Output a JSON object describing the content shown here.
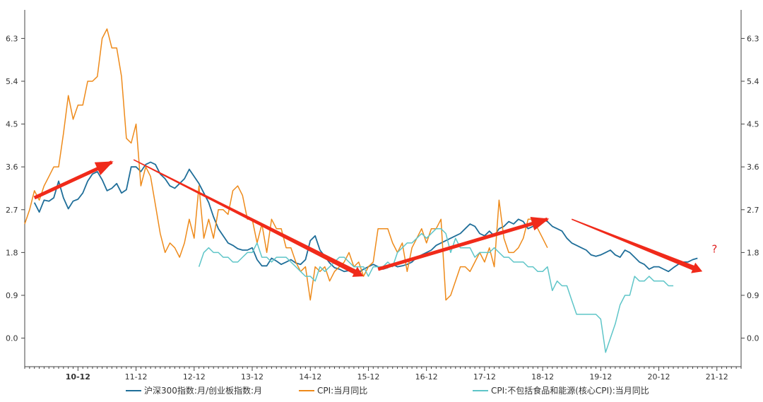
{
  "chart_data": {
    "type": "line",
    "title": "",
    "xlabel": "",
    "ylabel": "",
    "ylim": [
      -0.6,
      6.9
    ],
    "y_ticks": [
      "6.3",
      "5.4",
      "4.5",
      "3.6",
      "2.7",
      "1.8",
      "0.9",
      "0.0"
    ],
    "y_tick_values": [
      6.3,
      5.4,
      4.5,
      3.6,
      2.7,
      1.8,
      0.9,
      0.0
    ],
    "x_ticks": [
      "10-12",
      "11-12",
      "12-12",
      "13-12",
      "14-12",
      "15-12",
      "16-12",
      "17-12",
      "18-12",
      "19-12",
      "20-12",
      "21-12"
    ],
    "x_bold_tick": "10-12",
    "start_month": "2010-01",
    "months_count": 149,
    "series": [
      {
        "name": "沪深300指数:月/创业板指数:月",
        "color": "#1f6e99",
        "start_index": 2,
        "values": [
          2.85,
          2.65,
          2.9,
          2.88,
          2.95,
          3.3,
          2.95,
          2.72,
          2.88,
          2.92,
          3.05,
          3.3,
          3.45,
          3.5,
          3.33,
          3.1,
          3.15,
          3.25,
          3.05,
          3.12,
          3.6,
          3.6,
          3.5,
          3.65,
          3.7,
          3.65,
          3.45,
          3.35,
          3.2,
          3.15,
          3.25,
          3.35,
          3.55,
          3.4,
          3.25,
          3.05,
          2.85,
          2.55,
          2.3,
          2.15,
          2.0,
          1.95,
          1.88,
          1.85,
          1.85,
          1.9,
          1.65,
          1.52,
          1.52,
          1.68,
          1.62,
          1.55,
          1.6,
          1.65,
          1.58,
          1.55,
          1.65,
          2.05,
          2.15,
          1.85,
          1.72,
          1.58,
          1.48,
          1.45,
          1.4,
          1.42,
          1.45,
          1.38,
          1.45,
          1.5,
          1.55,
          1.5,
          1.45,
          1.48,
          1.55,
          1.5,
          1.52,
          1.55,
          1.6,
          1.7,
          1.75,
          1.8,
          1.85,
          1.95,
          2.0,
          2.05,
          2.1,
          2.15,
          2.2,
          2.3,
          2.4,
          2.35,
          2.2,
          2.15,
          2.25,
          2.15,
          2.3,
          2.35,
          2.45,
          2.4,
          2.5,
          2.45,
          2.3,
          2.35,
          2.5,
          2.5,
          2.45,
          2.35,
          2.3,
          2.25,
          2.1,
          2.0,
          1.95,
          1.9,
          1.85,
          1.75,
          1.72,
          1.75,
          1.8,
          1.85,
          1.75,
          1.7,
          1.85,
          1.8,
          1.7,
          1.6,
          1.55,
          1.45,
          1.5,
          1.5,
          1.45,
          1.4,
          1.48,
          1.55,
          1.6,
          1.6,
          1.65,
          1.68
        ]
      },
      {
        "name": "CPI:当月同比",
        "color": "#ee8a1a",
        "start_index": 0,
        "values": [
          2.4,
          2.7,
          3.1,
          2.9,
          3.2,
          3.4,
          3.6,
          3.6,
          4.3,
          5.1,
          4.6,
          4.9,
          4.9,
          5.4,
          5.4,
          5.5,
          6.3,
          6.5,
          6.1,
          6.1,
          5.5,
          4.2,
          4.1,
          4.5,
          3.2,
          3.6,
          3.4,
          2.8,
          2.2,
          1.8,
          2.0,
          1.9,
          1.7,
          2.0,
          2.5,
          2.1,
          3.2,
          2.1,
          2.5,
          2.1,
          2.7,
          2.7,
          2.6,
          3.1,
          3.2,
          3.0,
          2.5,
          2.5,
          2.0,
          2.4,
          1.8,
          2.5,
          2.3,
          2.3,
          1.9,
          1.9,
          1.6,
          1.4,
          1.5,
          0.8,
          1.5,
          1.4,
          1.5,
          1.2,
          1.4,
          1.5,
          1.6,
          1.8,
          1.5,
          1.6,
          1.3,
          1.5,
          1.6,
          2.3,
          2.3,
          2.3,
          2.0,
          1.8,
          2.0,
          1.4,
          1.9,
          2.1,
          2.3,
          2.0,
          2.3,
          2.3,
          2.5,
          0.8,
          0.9,
          1.2,
          1.5,
          1.5,
          1.4,
          1.6,
          1.8,
          1.6,
          1.9,
          1.5,
          2.9,
          2.1,
          1.8,
          1.8,
          1.9,
          2.1,
          2.5,
          2.5,
          2.3,
          2.1,
          1.9
        ]
      },
      {
        "name": "CPI:不包括食品和能源(核心CPI):当月同比",
        "color": "#5ec5c8",
        "start_index": 36,
        "values": [
          1.5,
          1.8,
          1.9,
          1.8,
          1.8,
          1.7,
          1.7,
          1.6,
          1.6,
          1.7,
          1.8,
          1.8,
          2.0,
          1.7,
          1.7,
          1.6,
          1.7,
          1.7,
          1.7,
          1.6,
          1.5,
          1.4,
          1.3,
          1.3,
          1.2,
          1.5,
          1.4,
          1.5,
          1.6,
          1.7,
          1.7,
          1.6,
          1.5,
          1.5,
          1.5,
          1.3,
          1.5,
          1.5,
          1.5,
          1.6,
          1.5,
          1.8,
          1.9,
          2.0,
          2.0,
          2.1,
          2.2,
          2.1,
          2.2,
          2.3,
          2.3,
          2.2,
          1.8,
          2.1,
          1.9,
          1.9,
          1.9,
          1.7,
          1.8,
          1.8,
          1.8,
          1.9,
          1.8,
          1.7,
          1.7,
          1.6,
          1.6,
          1.6,
          1.5,
          1.5,
          1.4,
          1.4,
          1.5,
          1.0,
          1.2,
          1.1,
          1.1,
          0.8,
          0.5,
          0.5,
          0.5,
          0.5,
          0.5,
          0.4,
          -0.3,
          0.0,
          0.3,
          0.7,
          0.9,
          0.9,
          1.3,
          1.2,
          1.2,
          1.3,
          1.2,
          1.2,
          1.2,
          1.1,
          1.1
        ]
      }
    ],
    "trend_arrows": [
      {
        "from": [
          2.0,
          2.95
        ],
        "to": [
          18.0,
          3.7
        ],
        "weight": "bold"
      },
      {
        "from": [
          22.5,
          3.75
        ],
        "to": [
          70.0,
          1.3
        ],
        "weight": "thin-to-bold"
      },
      {
        "from": [
          73.0,
          1.45
        ],
        "to": [
          108.0,
          2.5
        ],
        "weight": "bold"
      },
      {
        "from": [
          113.0,
          2.5
        ],
        "to": [
          140.0,
          1.4
        ],
        "weight": "thin-to-bold"
      }
    ],
    "annotations": [
      {
        "text": "?",
        "x": 142.5,
        "y": 1.8,
        "color": "#e02020"
      }
    ],
    "legend_position": "bottom"
  }
}
